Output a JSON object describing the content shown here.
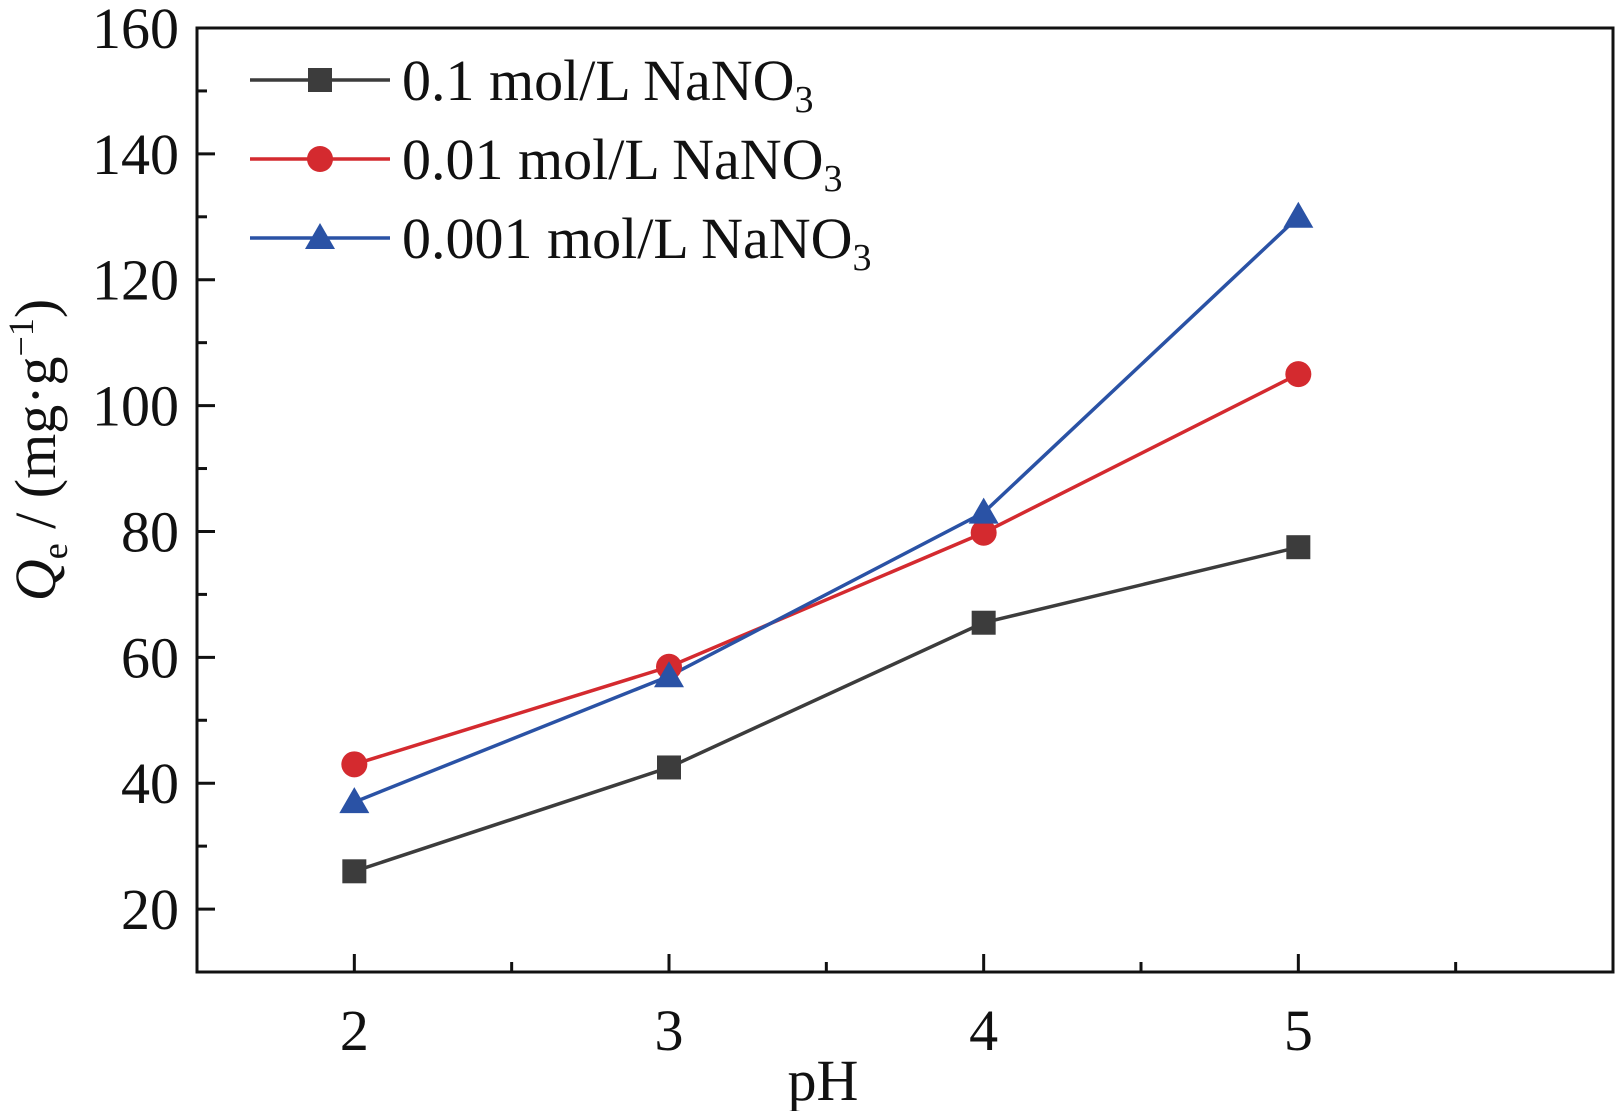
{
  "chart_data": {
    "type": "line",
    "title": "",
    "xlabel": "pH",
    "ylabel": {
      "main": "Q",
      "sub": "e",
      "unit_prefix": " / (mg·g",
      "unit_sup": "−1",
      "unit_suffix": ")"
    },
    "xlim": [
      1.5,
      6.0
    ],
    "ylim": [
      10,
      160
    ],
    "x_ticks": [
      2,
      3,
      4,
      5
    ],
    "x_tick_labels": [
      "2",
      "3",
      "4",
      "5"
    ],
    "x_minor_ticks": [
      2.5,
      3.5,
      4.5,
      5.5
    ],
    "y_ticks": [
      20,
      40,
      60,
      80,
      100,
      120,
      140,
      160
    ],
    "y_tick_labels": [
      "20",
      "40",
      "60",
      "80",
      "100",
      "120",
      "140",
      "160"
    ],
    "y_minor_ticks": [
      30,
      50,
      70,
      90,
      110,
      130,
      150
    ],
    "grid": false,
    "legend_position": "top-left",
    "x": [
      2,
      3,
      4,
      5
    ],
    "series": [
      {
        "name": "0.1 mol/L NaNO",
        "name_sub": "3",
        "values": [
          26,
          42.5,
          65.5,
          77.5
        ],
        "color": "#3c3c3c",
        "marker": "square"
      },
      {
        "name": "0.01 mol/L NaNO",
        "name_sub": "3",
        "values": [
          43,
          58.5,
          79.8,
          105
        ],
        "color": "#d42a2f",
        "marker": "circle"
      },
      {
        "name": "0.001 mol/L NaNO",
        "name_sub": "3",
        "values": [
          37,
          57,
          83,
          130
        ],
        "color": "#2a52a5",
        "marker": "triangle"
      }
    ]
  }
}
